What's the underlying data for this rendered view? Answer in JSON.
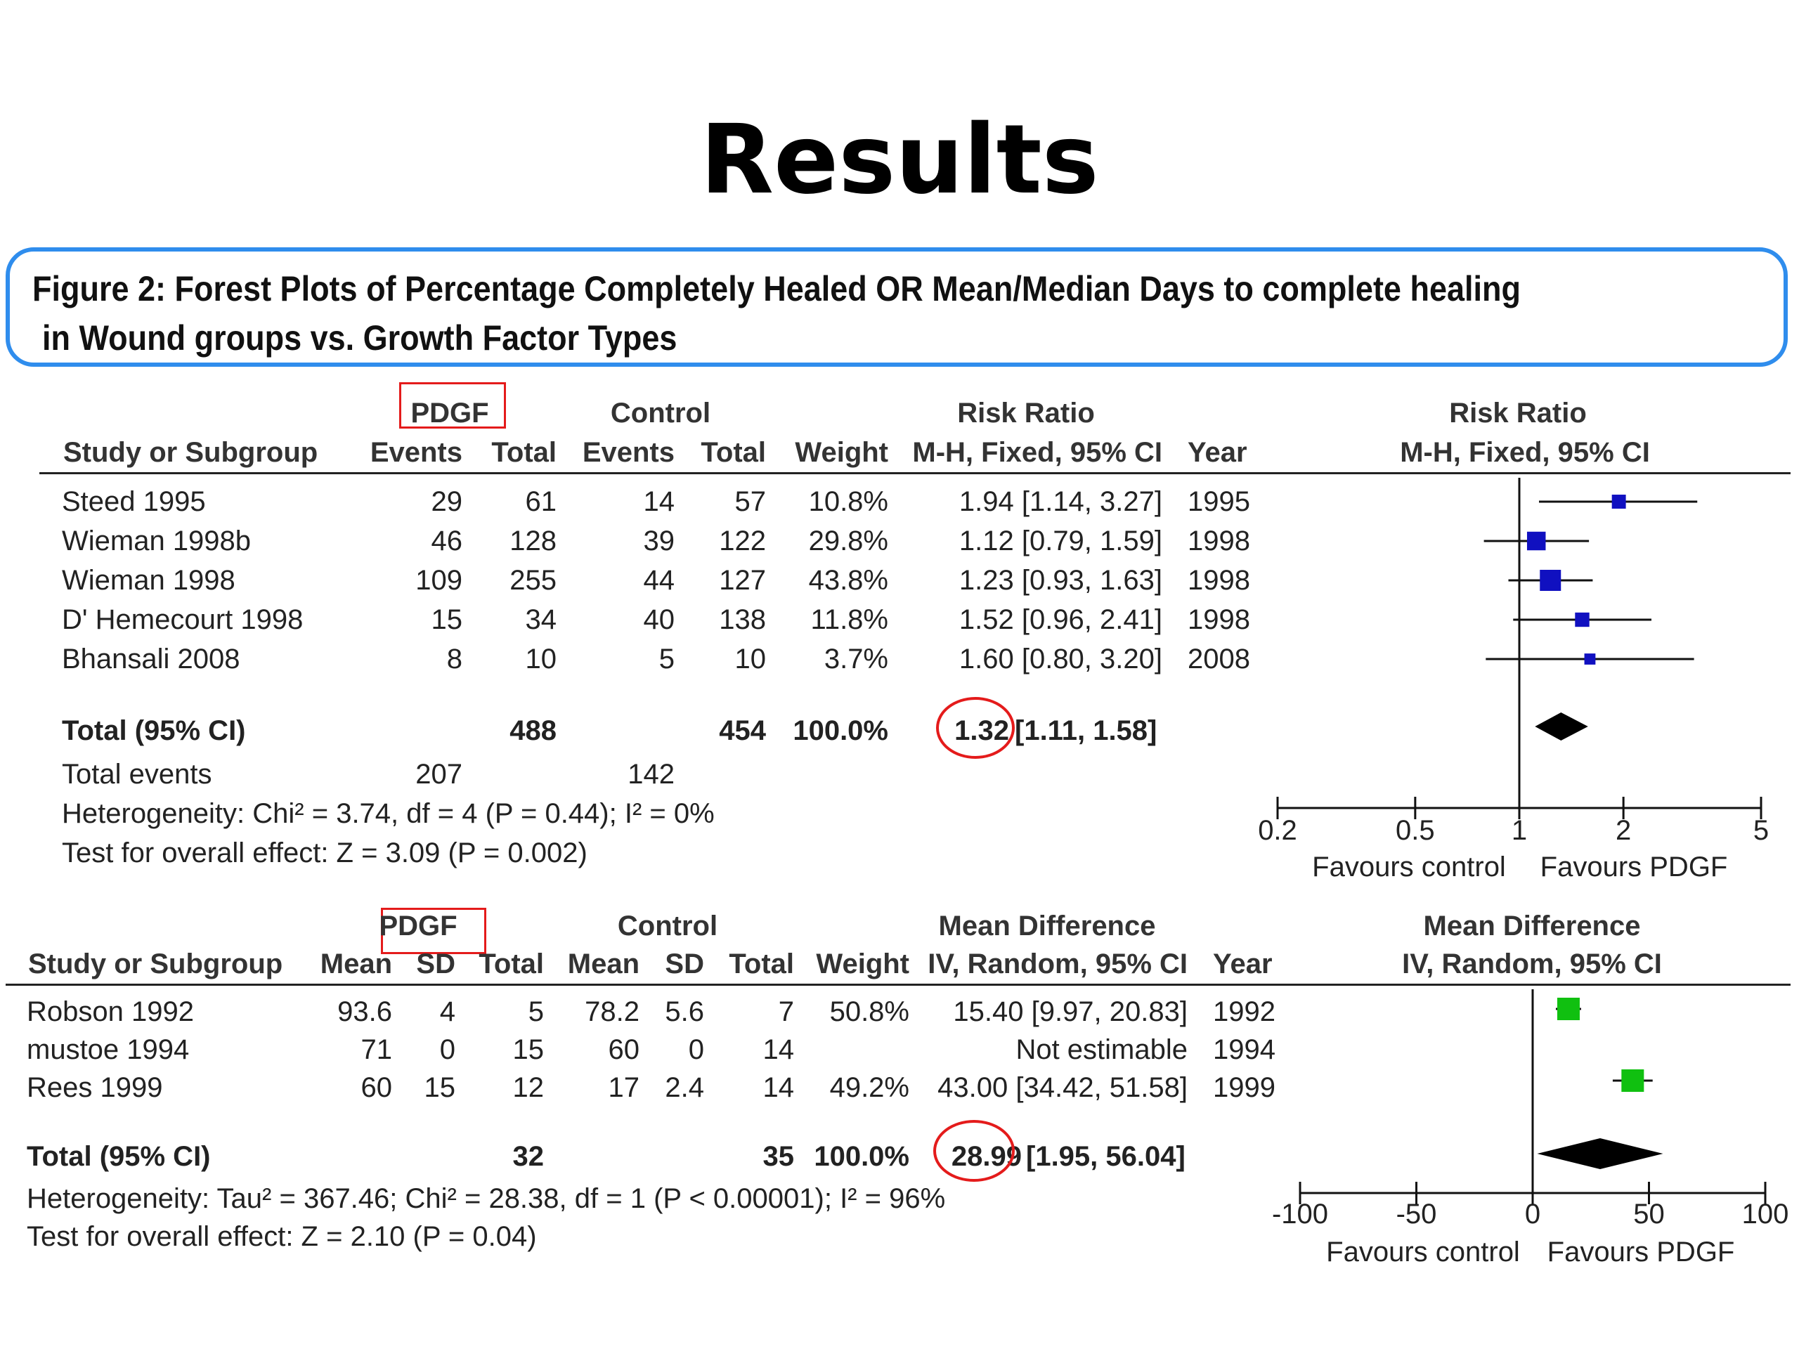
{
  "slide_title": "Results",
  "caption": {
    "line1": "Figure 2: Forest Plots of Percentage Completely Healed OR Mean/Median Days to complete healing",
    "line2": "in Wound groups vs. Growth Factor Types"
  },
  "colors": {
    "caption_border": "#2f8ded",
    "highlight": "#e41b1b",
    "plot1_marker": "#1010c0",
    "plot2_marker": "#10c010"
  },
  "plot1": {
    "group_headers": {
      "experimental": "PDGF",
      "control": "Control",
      "effect": "Risk Ratio",
      "graph": "Risk Ratio"
    },
    "columns": {
      "study": "Study or Subgroup",
      "exp_events": "Events",
      "exp_total": "Total",
      "ctl_events": "Events",
      "ctl_total": "Total",
      "weight": "Weight",
      "effect_ci": "M-H, Fixed, 95% CI",
      "year": "Year",
      "graph": "M-H, Fixed, 95% CI"
    },
    "rows": [
      {
        "study": "Steed 1995",
        "exp_events": "29",
        "exp_total": "61",
        "ctl_events": "14",
        "ctl_total": "57",
        "weight": "10.8%",
        "ci": "1.94 [1.14, 3.27]",
        "year": "1995"
      },
      {
        "study": "Wieman 1998b",
        "exp_events": "46",
        "exp_total": "128",
        "ctl_events": "39",
        "ctl_total": "122",
        "weight": "29.8%",
        "ci": "1.12 [0.79, 1.59]",
        "year": "1998"
      },
      {
        "study": "Wieman 1998",
        "exp_events": "109",
        "exp_total": "255",
        "ctl_events": "44",
        "ctl_total": "127",
        "weight": "43.8%",
        "ci": "1.23 [0.93, 1.63]",
        "year": "1998"
      },
      {
        "study": "D' Hemecourt 1998",
        "exp_events": "15",
        "exp_total": "34",
        "ctl_events": "40",
        "ctl_total": "138",
        "weight": "11.8%",
        "ci": "1.52 [0.96, 2.41]",
        "year": "1998"
      },
      {
        "study": "Bhansali 2008",
        "exp_events": "8",
        "exp_total": "10",
        "ctl_events": "5",
        "ctl_total": "10",
        "weight": "3.7%",
        "ci": "1.60 [0.80, 3.20]",
        "year": "2008"
      }
    ],
    "total": {
      "label": "Total (95% CI)",
      "exp_total": "488",
      "ctl_total": "454",
      "weight": "100.0%",
      "estimate": "1.32",
      "ci": "[1.11, 1.58]"
    },
    "total_events": {
      "label": "Total events",
      "exp": "207",
      "ctl": "142"
    },
    "heterogeneity": "Heterogeneity: Chi² = 3.74, df = 4 (P = 0.44); I² = 0%",
    "overall_effect": "Test for overall effect: Z = 3.09 (P = 0.002)",
    "axis": {
      "ticks": [
        "0.2",
        "0.5",
        "1",
        "2",
        "5"
      ],
      "favours_left": "Favours control",
      "favours_right": "Favours PDGF"
    }
  },
  "plot2": {
    "group_headers": {
      "experimental": "PDGF",
      "control": "Control",
      "effect": "Mean Difference",
      "graph": "Mean Difference"
    },
    "columns": {
      "study": "Study or Subgroup",
      "exp_mean": "Mean",
      "exp_sd": "SD",
      "exp_total": "Total",
      "ctl_mean": "Mean",
      "ctl_sd": "SD",
      "ctl_total": "Total",
      "weight": "Weight",
      "effect_ci": "IV, Random, 95% CI",
      "year": "Year",
      "graph": "IV, Random, 95% CI"
    },
    "rows": [
      {
        "study": "Robson 1992",
        "exp_mean": "93.6",
        "exp_sd": "4",
        "exp_total": "5",
        "ctl_mean": "78.2",
        "ctl_sd": "5.6",
        "ctl_total": "7",
        "weight": "50.8%",
        "ci": "15.40 [9.97, 20.83]",
        "year": "1992"
      },
      {
        "study": "mustoe 1994",
        "exp_mean": "71",
        "exp_sd": "0",
        "exp_total": "15",
        "ctl_mean": "60",
        "ctl_sd": "0",
        "ctl_total": "14",
        "weight": "",
        "ci": "Not estimable",
        "year": "1994"
      },
      {
        "study": "Rees 1999",
        "exp_mean": "60",
        "exp_sd": "15",
        "exp_total": "12",
        "ctl_mean": "17",
        "ctl_sd": "2.4",
        "ctl_total": "14",
        "weight": "49.2%",
        "ci": "43.00 [34.42, 51.58]",
        "year": "1999"
      }
    ],
    "total": {
      "label": "Total (95% CI)",
      "exp_total": "32",
      "ctl_total": "35",
      "weight": "100.0%",
      "estimate": "28.99",
      "ci": "[1.95, 56.04]"
    },
    "heterogeneity": "Heterogeneity: Tau² = 367.46; Chi² = 28.38, df = 1 (P < 0.00001); I² = 96%",
    "overall_effect": "Test for overall effect: Z = 2.10 (P = 0.04)",
    "axis": {
      "ticks": [
        "-100",
        "-50",
        "0",
        "50",
        "100"
      ],
      "favours_left": "Favours control",
      "favours_right": "Favours PDGF"
    }
  },
  "chart_data": [
    {
      "type": "forest",
      "measure": "Risk Ratio",
      "scale": "log",
      "xlim": [
        0.2,
        5
      ],
      "reference": 1,
      "series": [
        {
          "label": "Steed 1995",
          "estimate": 1.94,
          "lower": 1.14,
          "upper": 3.27,
          "weight": 10.8
        },
        {
          "label": "Wieman 1998b",
          "estimate": 1.12,
          "lower": 0.79,
          "upper": 1.59,
          "weight": 29.8
        },
        {
          "label": "Wieman 1998",
          "estimate": 1.23,
          "lower": 0.93,
          "upper": 1.63,
          "weight": 43.8
        },
        {
          "label": "D' Hemecourt 1998",
          "estimate": 1.52,
          "lower": 0.96,
          "upper": 2.41,
          "weight": 11.8
        },
        {
          "label": "Bhansali 2008",
          "estimate": 1.6,
          "lower": 0.8,
          "upper": 3.2,
          "weight": 3.7
        }
      ],
      "pooled": {
        "estimate": 1.32,
        "lower": 1.11,
        "upper": 1.58
      }
    },
    {
      "type": "forest",
      "measure": "Mean Difference",
      "scale": "linear",
      "xlim": [
        -100,
        100
      ],
      "reference": 0,
      "series": [
        {
          "label": "Robson 1992",
          "estimate": 15.4,
          "lower": 9.97,
          "upper": 20.83,
          "weight": 50.8
        },
        {
          "label": "Rees 1999",
          "estimate": 43.0,
          "lower": 34.42,
          "upper": 51.58,
          "weight": 49.2
        }
      ],
      "pooled": {
        "estimate": 28.99,
        "lower": 1.95,
        "upper": 56.04
      }
    }
  ]
}
